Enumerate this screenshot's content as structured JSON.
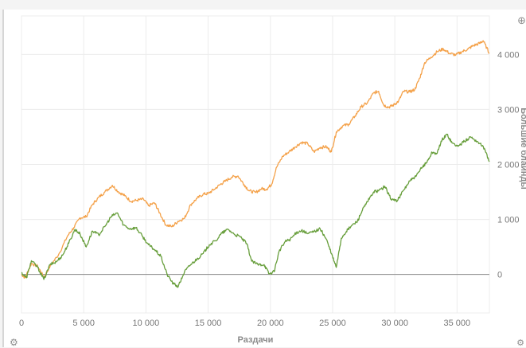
{
  "chart_data": {
    "type": "line",
    "xlabel": "Раздачи",
    "ylabel": "Большие блайнды",
    "xlim": [
      0,
      37600
    ],
    "ylim": [
      -700,
      4700
    ],
    "grid": true,
    "x_ticks": [
      0,
      5000,
      10000,
      15000,
      20000,
      25000,
      30000,
      35000
    ],
    "x_tick_labels": [
      "0",
      "5 000",
      "10 000",
      "15 000",
      "20 000",
      "25 000",
      "30 000",
      "35 000"
    ],
    "y_ticks": [
      0,
      1000,
      2000,
      3000,
      4000
    ],
    "y_tick_labels": [
      "0",
      "1 000",
      "2 000",
      "3 000",
      "4 000"
    ],
    "series": [
      {
        "color": "#f4a149",
        "points": [
          [
            0,
            0
          ],
          [
            300,
            -60
          ],
          [
            800,
            200
          ],
          [
            1300,
            150
          ],
          [
            1800,
            -50
          ],
          [
            2300,
            150
          ],
          [
            3000,
            370
          ],
          [
            3700,
            700
          ],
          [
            4200,
            850
          ],
          [
            4700,
            1030
          ],
          [
            5200,
            1050
          ],
          [
            5700,
            1270
          ],
          [
            6200,
            1400
          ],
          [
            6700,
            1500
          ],
          [
            7300,
            1620
          ],
          [
            7800,
            1500
          ],
          [
            8300,
            1430
          ],
          [
            8800,
            1330
          ],
          [
            9300,
            1350
          ],
          [
            9800,
            1370
          ],
          [
            10200,
            1250
          ],
          [
            10700,
            1300
          ],
          [
            11100,
            1120
          ],
          [
            11600,
            900
          ],
          [
            12100,
            870
          ],
          [
            12600,
            970
          ],
          [
            13100,
            1020
          ],
          [
            13600,
            1270
          ],
          [
            14100,
            1380
          ],
          [
            14600,
            1460
          ],
          [
            15000,
            1470
          ],
          [
            15500,
            1550
          ],
          [
            16000,
            1640
          ],
          [
            16400,
            1700
          ],
          [
            16900,
            1770
          ],
          [
            17400,
            1790
          ],
          [
            17900,
            1630
          ],
          [
            18300,
            1520
          ],
          [
            18800,
            1490
          ],
          [
            19300,
            1560
          ],
          [
            19700,
            1550
          ],
          [
            20100,
            1640
          ],
          [
            20500,
            1950
          ],
          [
            21000,
            2150
          ],
          [
            21500,
            2230
          ],
          [
            22000,
            2320
          ],
          [
            22500,
            2400
          ],
          [
            23000,
            2380
          ],
          [
            23500,
            2230
          ],
          [
            24000,
            2310
          ],
          [
            24500,
            2320
          ],
          [
            24900,
            2230
          ],
          [
            25300,
            2590
          ],
          [
            25800,
            2700
          ],
          [
            26300,
            2730
          ],
          [
            26800,
            2880
          ],
          [
            27300,
            3050
          ],
          [
            27800,
            3120
          ],
          [
            28300,
            3300
          ],
          [
            28700,
            3330
          ],
          [
            29100,
            3080
          ],
          [
            29500,
            3040
          ],
          [
            29900,
            3080
          ],
          [
            30300,
            3150
          ],
          [
            30700,
            3330
          ],
          [
            31200,
            3320
          ],
          [
            31600,
            3360
          ],
          [
            32000,
            3570
          ],
          [
            32400,
            3850
          ],
          [
            32900,
            3950
          ],
          [
            33400,
            4050
          ],
          [
            33900,
            4100
          ],
          [
            34400,
            4020
          ],
          [
            34900,
            3990
          ],
          [
            35400,
            4050
          ],
          [
            35900,
            4100
          ],
          [
            36300,
            4160
          ],
          [
            36800,
            4200
          ],
          [
            37100,
            4250
          ],
          [
            37600,
            4020
          ]
        ]
      },
      {
        "color": "#679e3b",
        "points": [
          [
            0,
            30
          ],
          [
            400,
            -60
          ],
          [
            800,
            250
          ],
          [
            1300,
            130
          ],
          [
            1800,
            -90
          ],
          [
            2300,
            180
          ],
          [
            2800,
            230
          ],
          [
            3300,
            350
          ],
          [
            3800,
            570
          ],
          [
            4300,
            820
          ],
          [
            4700,
            740
          ],
          [
            5200,
            500
          ],
          [
            5700,
            790
          ],
          [
            6200,
            720
          ],
          [
            6700,
            870
          ],
          [
            7200,
            1050
          ],
          [
            7700,
            1120
          ],
          [
            8200,
            900
          ],
          [
            8700,
            830
          ],
          [
            9200,
            850
          ],
          [
            9700,
            700
          ],
          [
            10200,
            540
          ],
          [
            10700,
            450
          ],
          [
            11200,
            330
          ],
          [
            11700,
            0
          ],
          [
            12200,
            -170
          ],
          [
            12600,
            -220
          ],
          [
            13100,
            50
          ],
          [
            13600,
            180
          ],
          [
            14100,
            280
          ],
          [
            14600,
            380
          ],
          [
            15100,
            540
          ],
          [
            15600,
            610
          ],
          [
            16100,
            750
          ],
          [
            16600,
            820
          ],
          [
            17100,
            730
          ],
          [
            17600,
            680
          ],
          [
            18100,
            560
          ],
          [
            18500,
            240
          ],
          [
            19000,
            180
          ],
          [
            19500,
            180
          ],
          [
            19900,
            10
          ],
          [
            20300,
            50
          ],
          [
            20700,
            420
          ],
          [
            21200,
            600
          ],
          [
            21600,
            640
          ],
          [
            22100,
            760
          ],
          [
            22500,
            800
          ],
          [
            23000,
            740
          ],
          [
            23500,
            780
          ],
          [
            24000,
            830
          ],
          [
            24500,
            640
          ],
          [
            24900,
            380
          ],
          [
            25300,
            130
          ],
          [
            25700,
            660
          ],
          [
            26100,
            780
          ],
          [
            26500,
            880
          ],
          [
            27000,
            970
          ],
          [
            27400,
            1170
          ],
          [
            27800,
            1320
          ],
          [
            28300,
            1500
          ],
          [
            28700,
            1520
          ],
          [
            29200,
            1600
          ],
          [
            29700,
            1370
          ],
          [
            30200,
            1340
          ],
          [
            30700,
            1530
          ],
          [
            31200,
            1700
          ],
          [
            31700,
            1780
          ],
          [
            32200,
            1950
          ],
          [
            32600,
            2050
          ],
          [
            33000,
            2220
          ],
          [
            33400,
            2200
          ],
          [
            33800,
            2450
          ],
          [
            34200,
            2550
          ],
          [
            34600,
            2390
          ],
          [
            35100,
            2330
          ],
          [
            35600,
            2420
          ],
          [
            36100,
            2500
          ],
          [
            36600,
            2420
          ],
          [
            37100,
            2330
          ],
          [
            37600,
            2050
          ]
        ]
      }
    ]
  },
  "icons": {
    "top_right": "zoom-icon",
    "bottom_left": "gear-icon",
    "bottom_right": "settings-icon"
  }
}
